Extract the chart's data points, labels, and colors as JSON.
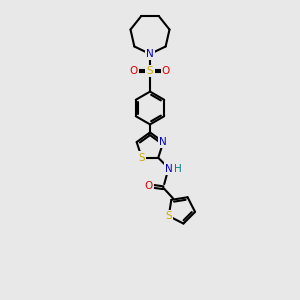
{
  "bg": "#e8e8e8",
  "bk": "#000000",
  "bl": "#0000cc",
  "rd": "#dd0000",
  "yl": "#ccaa00",
  "teal": "#008080",
  "lw": 1.5,
  "fs": 7.5,
  "figsize": [
    3.0,
    3.0
  ],
  "dpi": 100,
  "xlim": [
    -3.5,
    3.5
  ],
  "ylim": [
    -7.5,
    7.5
  ]
}
